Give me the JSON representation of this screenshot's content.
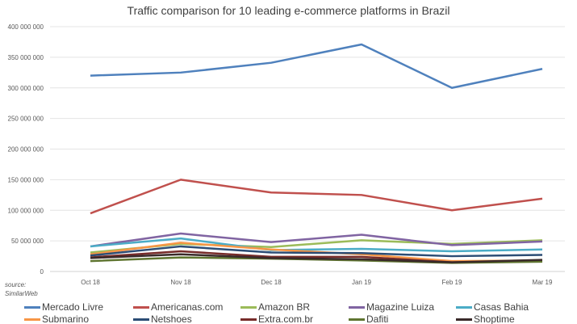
{
  "chart_data": {
    "type": "line",
    "title": "Traffic comparison for 10 leading e-commerce platforms in Brazil",
    "source_note": [
      "source:",
      "SimilarWeb"
    ],
    "categories": [
      "Oct 18",
      "Nov 18",
      "Dec 18",
      "Jan 19",
      "Feb 19",
      "Mar 19"
    ],
    "ylim": [
      0,
      400000000
    ],
    "yticks": [
      0,
      50000000,
      100000000,
      150000000,
      200000000,
      250000000,
      300000000,
      350000000,
      400000000
    ],
    "ytick_labels": [
      "0",
      "50 000 000",
      "100 000 000",
      "150 000 000",
      "200 000 000",
      "250 000 000",
      "300 000 000",
      "350 000 000",
      "400 000 000"
    ],
    "grid": true,
    "legend_position": "bottom",
    "series": [
      {
        "name": "Mercado Livre",
        "color": "#4f81bd",
        "values": [
          320000000,
          325000000,
          341000000,
          371000000,
          300000000,
          331000000
        ]
      },
      {
        "name": "Americanas.com",
        "color": "#c0504d",
        "values": [
          95000000,
          150000000,
          129000000,
          125000000,
          100000000,
          119000000
        ]
      },
      {
        "name": "Amazon BR",
        "color": "#9bbb59",
        "values": [
          31000000,
          45000000,
          40000000,
          51000000,
          45000000,
          51000000
        ]
      },
      {
        "name": "Magazine Luiza",
        "color": "#8064a2",
        "values": [
          41000000,
          62000000,
          48000000,
          60000000,
          43000000,
          49000000
        ]
      },
      {
        "name": "Casas Bahia",
        "color": "#4bacc6",
        "values": [
          41000000,
          54000000,
          35000000,
          37000000,
          33000000,
          36000000
        ]
      },
      {
        "name": "Submarino",
        "color": "#f79646",
        "values": [
          28000000,
          47000000,
          36000000,
          28000000,
          17000000,
          18000000
        ]
      },
      {
        "name": "Netshoes",
        "color": "#2c4d75",
        "values": [
          26000000,
          41000000,
          31000000,
          30000000,
          25000000,
          27000000
        ]
      },
      {
        "name": "Extra.com.br",
        "color": "#772c2a",
        "values": [
          23000000,
          33000000,
          24000000,
          24000000,
          15000000,
          17000000
        ]
      },
      {
        "name": "Dafiti",
        "color": "#5f7530",
        "values": [
          17000000,
          23000000,
          21000000,
          18000000,
          14000000,
          16000000
        ]
      },
      {
        "name": "Shoptime",
        "color": "#3a2a2a",
        "values": [
          22000000,
          28000000,
          22000000,
          20000000,
          15000000,
          19000000
        ]
      }
    ]
  }
}
